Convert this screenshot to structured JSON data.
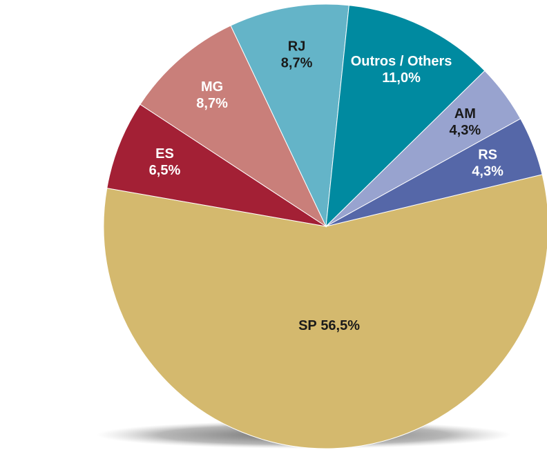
{
  "chart_data": {
    "type": "pie",
    "categories": [
      "SP",
      "ES",
      "MG",
      "RJ",
      "Outros / Others",
      "AM",
      "RS"
    ],
    "values": [
      56.5,
      6.5,
      8.7,
      8.7,
      11.0,
      4.3,
      4.3
    ],
    "value_labels": [
      "56,5%",
      "6,5%",
      "8,7%",
      "8,7%",
      "11,0%",
      "4,3%",
      "4,3%"
    ],
    "colors": [
      "#d4b96e",
      "#a32035",
      "#c97f7a",
      "#64b4c8",
      "#008aa0",
      "#98a3cf",
      "#5567a8"
    ]
  }
}
